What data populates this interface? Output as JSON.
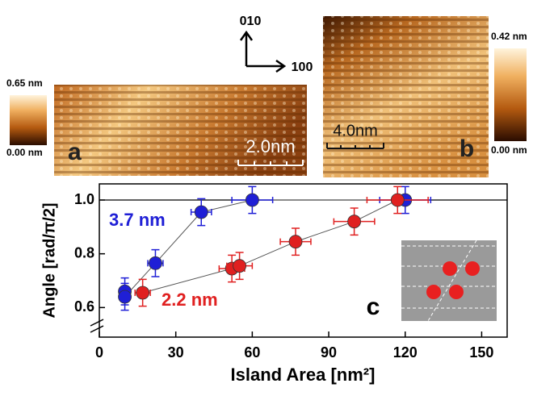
{
  "chart_data": {
    "type": "scatter",
    "ylabel": "Angle [rad/π/2]",
    "xlabel": "Island Area [nm²]",
    "xlim": [
      0,
      160
    ],
    "ylim": [
      0.49,
      1.06
    ],
    "xticks": [
      0,
      30,
      60,
      90,
      120,
      150
    ],
    "yticks": [
      0.6,
      0.8,
      {
        "value": 1,
        "label": "1.0"
      }
    ],
    "hline": 1,
    "grid": false,
    "series": [
      {
        "name": "3.7 nm",
        "color": "#1f1fd6",
        "x": [
          10,
          10,
          22,
          40,
          60,
          120
        ],
        "values": [
          0.66,
          0.64,
          0.765,
          0.955,
          1.0,
          1.0
        ],
        "xerr": [
          2,
          2,
          3,
          4,
          8,
          10
        ],
        "yerr": [
          0.05,
          0.05,
          0.05,
          0.05,
          0.05,
          0.05
        ]
      },
      {
        "name": "2.2 nm",
        "color": "#e02020",
        "x": [
          17,
          52,
          55,
          77,
          100,
          117
        ],
        "values": [
          0.655,
          0.745,
          0.755,
          0.845,
          0.92,
          1.0
        ],
        "xerr": [
          3,
          5,
          5,
          6,
          8,
          12
        ],
        "yerr": [
          0.05,
          0.05,
          0.05,
          0.05,
          0.05,
          0.05
        ]
      }
    ]
  },
  "panels": {
    "a": {
      "label": "a",
      "scale": "2.0nm",
      "bar_max": "0.65 nm",
      "bar_min": "0.00 nm"
    },
    "b": {
      "label": "b",
      "scale": "4.0nm",
      "bar_max": "0.42 nm",
      "bar_min": "0.00 nm"
    },
    "c": {
      "label": "c"
    },
    "axes": {
      "up": "010",
      "right": "100"
    }
  }
}
